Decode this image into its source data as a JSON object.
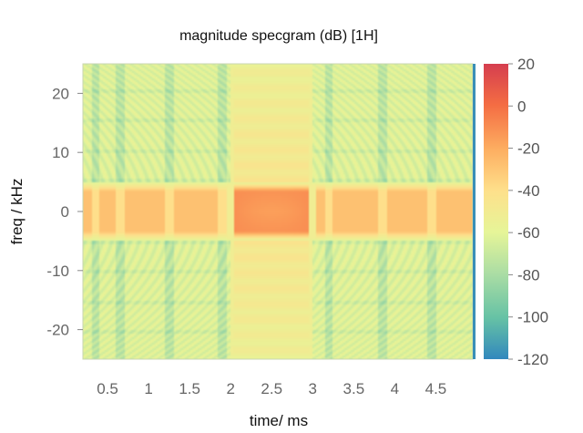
{
  "chart_data": {
    "type": "heatmap",
    "title": "magnitude specgram (dB) [1H]",
    "xlabel": "time/ ms",
    "ylabel": "freq / kHz",
    "xlim": [
      0.2,
      4.95
    ],
    "ylim": [
      -25,
      25
    ],
    "x_ticks": [
      "0.5",
      "1",
      "1.5",
      "2",
      "2.5",
      "3",
      "3.5",
      "4",
      "4.5"
    ],
    "x_tick_values": [
      0.5,
      1,
      1.5,
      2,
      2.5,
      3,
      3.5,
      4,
      4.5
    ],
    "y_ticks": [
      "20",
      "10",
      "0",
      "-10",
      "-20"
    ],
    "y_tick_values": [
      20,
      10,
      0,
      -10,
      -20
    ],
    "colorbar": {
      "ticks": [
        "20",
        "0",
        "-20",
        "-40",
        "-60",
        "-80",
        "-100",
        "-120"
      ],
      "tick_values": [
        20,
        0,
        -20,
        -40,
        -60,
        -80,
        -100,
        -120
      ],
      "range": [
        -120,
        20
      ],
      "colormap": "spectral"
    },
    "features": {
      "central_band_half_width_khz": 5,
      "strong_segment_ms": [
        2.0,
        3.0
      ],
      "pulse_boundaries_ms": [
        0.35,
        0.65,
        1.25,
        1.9,
        3.2,
        3.85,
        4.45
      ],
      "peak_db": -5,
      "background_db": -62
    }
  }
}
